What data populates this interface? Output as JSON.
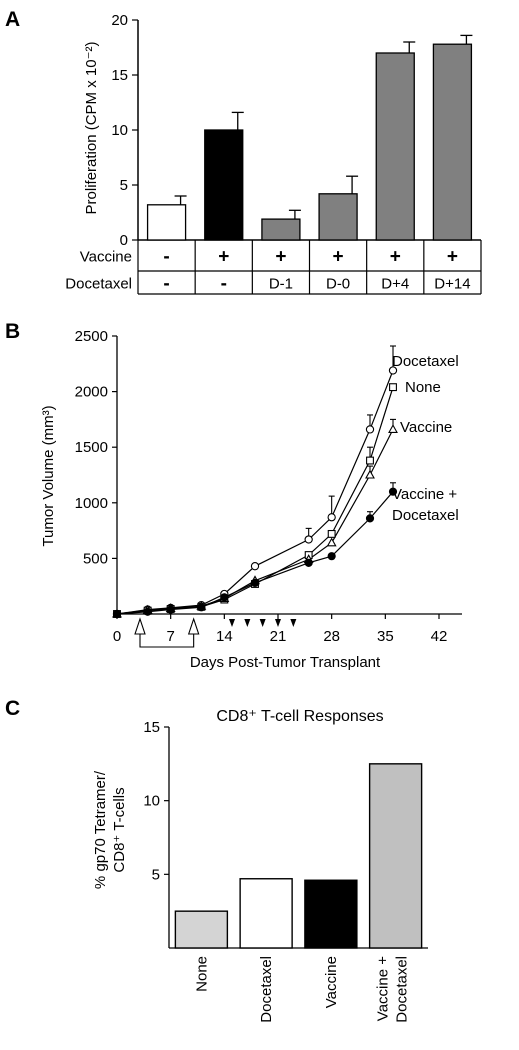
{
  "panels": {
    "a": {
      "label": "A",
      "chart_data": {
        "type": "bar",
        "ylabel": "Proliferation (CPM x 10⁻²)",
        "ylim": [
          0,
          20
        ],
        "yticks": [
          "0",
          "5",
          "10",
          "15",
          "20"
        ],
        "yticks_v": [
          0,
          5,
          10,
          15,
          20
        ],
        "categories": [
          "1",
          "2",
          "3",
          "4",
          "5",
          "6"
        ],
        "values": [
          3.2,
          10.0,
          1.9,
          4.2,
          17.0,
          17.8
        ],
        "errors": [
          0.8,
          1.6,
          0.8,
          1.6,
          1.0,
          0.8
        ],
        "colors": [
          "#ffffff",
          "#000000",
          "#808080",
          "#808080",
          "#808080",
          "#808080"
        ],
        "table": {
          "rows": [
            {
              "label": "Vaccine",
              "cells": [
                "-",
                "+",
                "+",
                "+",
                "+",
                "+"
              ]
            },
            {
              "label": "Docetaxel",
              "cells": [
                "-",
                "-",
                "D-1",
                "D-0",
                "D+4",
                "D+14"
              ]
            }
          ]
        }
      }
    },
    "b": {
      "label": "B",
      "chart_data": {
        "type": "line",
        "xlabel": "Days Post-Tumor Transplant",
        "ylabel": "Tumor Volume (mm³)",
        "xlim": [
          0,
          45
        ],
        "ylim": [
          0,
          2500
        ],
        "xticks": [
          "0",
          "7",
          "14",
          "21",
          "28",
          "35",
          "42"
        ],
        "xticks_v": [
          0,
          7,
          14,
          21,
          28,
          35,
          42
        ],
        "yticks": [
          "500",
          "1000",
          "1500",
          "2000",
          "2500"
        ],
        "yticks_v": [
          500,
          1000,
          1500,
          2000,
          2500
        ],
        "vaccine_days": [
          3,
          10
        ],
        "docetaxel_days": [
          15,
          17,
          19,
          21,
          23
        ],
        "series": [
          {
            "name": "Docetaxel",
            "marker": "circle-open",
            "x": [
              0,
              4,
              7,
              11,
              14,
              18,
              25,
              28,
              33,
              36
            ],
            "y": [
              0,
              40,
              55,
              80,
              180,
              430,
              670,
              870,
              1660,
              2190
            ],
            "err": [
              0,
              0,
              0,
              0,
              0,
              0,
              100,
              190,
              130,
              220
            ]
          },
          {
            "name": "None",
            "marker": "square",
            "x": [
              0,
              4,
              7,
              11,
              14,
              18,
              25,
              28,
              33,
              36
            ],
            "y": [
              0,
              30,
              45,
              65,
              130,
              270,
              530,
              720,
              1380,
              2040
            ],
            "err": [
              0,
              0,
              0,
              0,
              0,
              0,
              0,
              0,
              120,
              0
            ]
          },
          {
            "name": "Vaccine",
            "marker": "triangle",
            "x": [
              0,
              4,
              7,
              11,
              14,
              18,
              25,
              28,
              33,
              36
            ],
            "y": [
              0,
              35,
              50,
              70,
              140,
              300,
              490,
              640,
              1250,
              1660
            ],
            "err": [
              0,
              0,
              0,
              0,
              0,
              0,
              0,
              0,
              80,
              90
            ]
          },
          {
            "name": "Vaccine +\nDocetaxel",
            "marker": "circle-filled",
            "x": [
              0,
              4,
              7,
              11,
              14,
              18,
              25,
              28,
              33,
              36
            ],
            "y": [
              0,
              20,
              40,
              60,
              150,
              280,
              460,
              520,
              860,
              1100
            ],
            "err": [
              0,
              0,
              0,
              0,
              0,
              0,
              0,
              0,
              60,
              80
            ]
          }
        ]
      }
    },
    "c": {
      "label": "C",
      "chart_data": {
        "type": "bar",
        "title": "CD8⁺ T-cell Responses",
        "ylabel_line1": "% gp70 Tetramer/",
        "ylabel_line2": "CD8⁺ T-cells",
        "ylim": [
          0,
          15
        ],
        "yticks": [
          "5",
          "10",
          "15"
        ],
        "yticks_v": [
          5,
          10,
          15
        ],
        "categories": [
          "None",
          "Docetaxel",
          "Vaccine",
          "Vaccine +\nDocetaxel"
        ],
        "values": [
          2.5,
          4.7,
          4.6,
          12.5
        ],
        "colors": [
          "#d4d4d4",
          "#ffffff",
          "#000000",
          "#c0c0c0"
        ]
      }
    }
  }
}
